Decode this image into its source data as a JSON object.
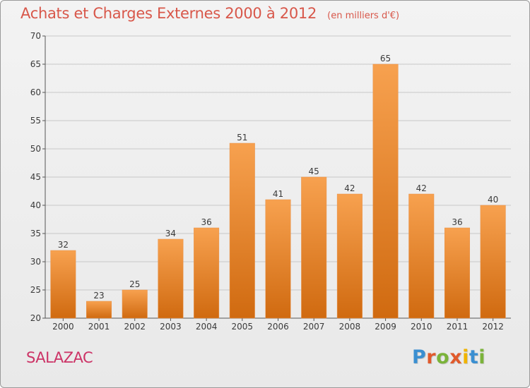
{
  "header": {
    "title": "Achats et Charges Externes 2000 à 2012",
    "subtitle": "(en milliers d'€)"
  },
  "footer": {
    "commune": "SALAZAC",
    "logo_text": "Proxiti",
    "logo_colors": [
      "#3a8fd1",
      "#e05a2c",
      "#7bb33a",
      "#e05a2c",
      "#f0b400",
      "#3a8fd1",
      "#7bb33a"
    ]
  },
  "colors": {
    "bar_light": "#f7a14f",
    "bar_dark": "#d06a10",
    "grid": "#c8c8c8",
    "title": "#d8574a",
    "commune": "#cc3366"
  },
  "chart_data": {
    "type": "bar",
    "title": "Achats et Charges Externes 2000 à 2012",
    "subtitle": "(en milliers d'€)",
    "xlabel": "",
    "ylabel": "",
    "categories": [
      "2000",
      "2001",
      "2002",
      "2003",
      "2004",
      "2005",
      "2006",
      "2007",
      "2008",
      "2009",
      "2010",
      "2011",
      "2012"
    ],
    "values": [
      32,
      23,
      25,
      34,
      36,
      51,
      41,
      45,
      42,
      65,
      42,
      36,
      40
    ],
    "ylim": [
      20,
      70
    ],
    "yticks": [
      20,
      25,
      30,
      35,
      40,
      45,
      50,
      55,
      60,
      65,
      70
    ],
    "grid": true,
    "data_labels": true
  }
}
